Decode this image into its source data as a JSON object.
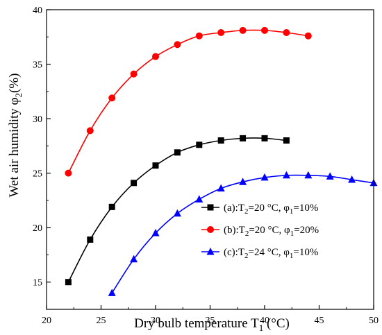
{
  "chart_data": {
    "type": "line",
    "title": "",
    "xlabel": {
      "main": "Dry bulb temperature T",
      "sub": "1",
      "unit": " (°C)"
    },
    "ylabel": {
      "main": "Wet air humidity φ",
      "sub": "2",
      "unit": "(%)"
    },
    "xlim": [
      20,
      50
    ],
    "ylim": [
      12.5,
      40
    ],
    "xticks": [
      20,
      25,
      30,
      35,
      40,
      45,
      50
    ],
    "yticks": [
      15,
      20,
      25,
      30,
      35,
      40
    ],
    "grid": false,
    "legend_position": "lower-right",
    "series": [
      {
        "name": "(a):T2=20 °C, φ1=10%",
        "legend": {
          "p1": "(a):T",
          "s1": "2",
          "p2": "=20 °C, φ",
          "s2": "1",
          "p3": "=10%"
        },
        "color": "#000000",
        "marker": "square",
        "x": [
          22,
          24,
          26,
          28,
          30,
          32,
          34,
          36,
          38,
          40,
          42
        ],
        "y": [
          15.0,
          18.9,
          21.9,
          24.1,
          25.7,
          26.9,
          27.6,
          28.0,
          28.2,
          28.2,
          28.0
        ]
      },
      {
        "name": "(b):T2=20 °C, φ1=20%",
        "legend": {
          "p1": "(b):T",
          "s1": "2",
          "p2": "=20 °C, φ",
          "s2": "1",
          "p3": "=20%"
        },
        "color": "#ff0000",
        "marker": "circle",
        "x": [
          22,
          24,
          26,
          28,
          30,
          32,
          34,
          36,
          38,
          40,
          42,
          44
        ],
        "y": [
          25.0,
          28.9,
          31.9,
          34.1,
          35.7,
          36.8,
          37.6,
          37.9,
          38.1,
          38.1,
          37.9,
          37.6
        ]
      },
      {
        "name": "(c):T2=24 °C, φ1=10%",
        "legend": {
          "p1": "(c):T",
          "s1": "2",
          "p2": "=24 °C, φ",
          "s2": "1",
          "p3": "=10%"
        },
        "color": "#0000ff",
        "marker": "triangle",
        "x": [
          26,
          28,
          30,
          32,
          34,
          36,
          38,
          40,
          42,
          44,
          46,
          48,
          50
        ],
        "y": [
          14.0,
          17.1,
          19.5,
          21.3,
          22.6,
          23.6,
          24.2,
          24.6,
          24.8,
          24.8,
          24.7,
          24.4,
          24.1
        ]
      }
    ]
  }
}
